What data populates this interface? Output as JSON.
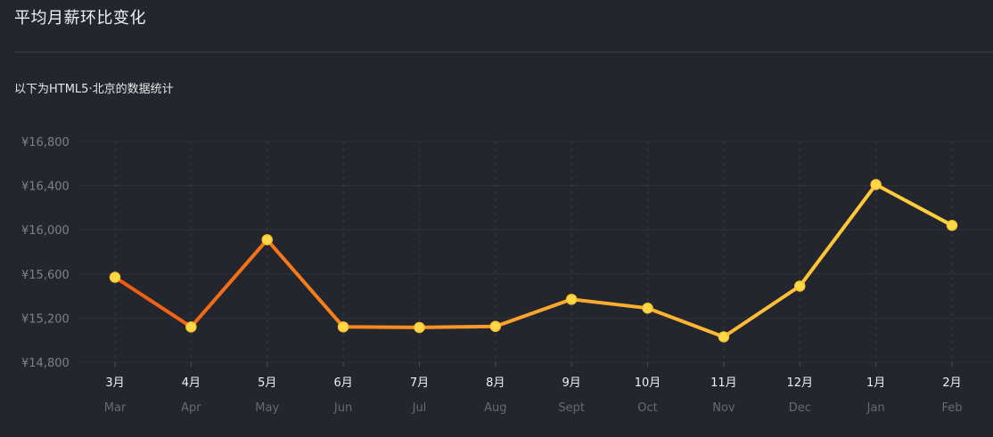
{
  "header": {
    "title": "平均月薪环比变化",
    "subtitle": "以下为HTML5·北京的数据统计"
  },
  "chart_data": {
    "type": "line",
    "categories": [
      "3月",
      "4月",
      "5月",
      "6月",
      "7月",
      "8月",
      "9月",
      "10月",
      "11月",
      "12月",
      "1月",
      "2月"
    ],
    "sub_labels": [
      "Mar",
      "Apr",
      "May",
      "Jun",
      "Jul",
      "Aug",
      "Sept",
      "Oct",
      "Nov",
      "Dec",
      "Jan",
      "Feb"
    ],
    "series": [
      {
        "values": [
          15570,
          15120,
          15910,
          15120,
          15115,
          15125,
          15370,
          15290,
          15030,
          15490,
          16410,
          16040
        ]
      }
    ],
    "ylim": [
      14800,
      16800
    ],
    "yticks": [
      14800,
      15200,
      15600,
      16000,
      16400,
      16800
    ],
    "ytick_labels": [
      "¥14,800",
      "¥15,200",
      "¥15,600",
      "¥16,000",
      "¥16,400",
      "¥16,800"
    ],
    "grid": true,
    "colors": {
      "line_start": "#f05a10",
      "line_end": "#ffd23c",
      "marker": "#ffd84a",
      "grid": "#30333b",
      "background": "#23262d"
    }
  }
}
